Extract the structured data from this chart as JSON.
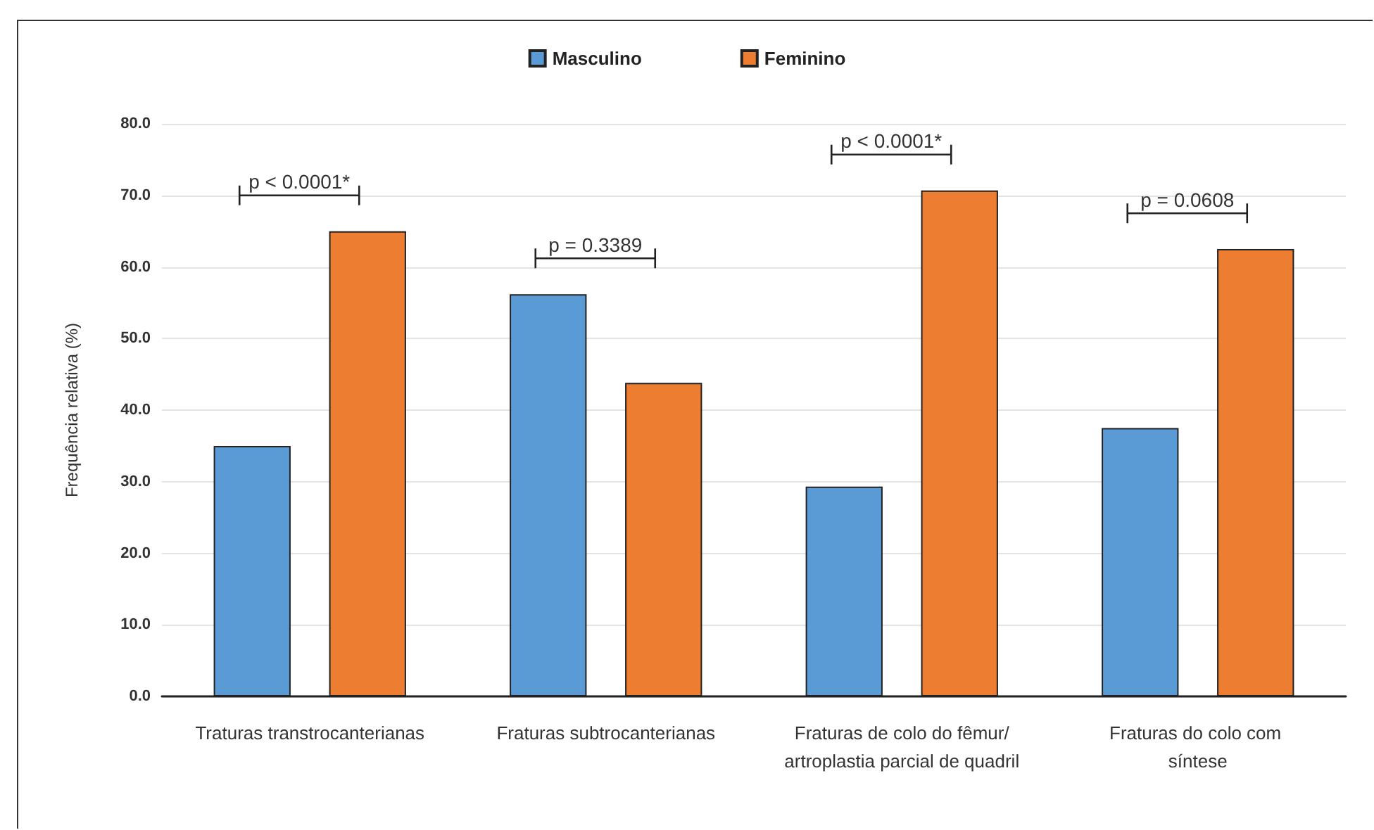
{
  "chart_data": {
    "type": "bar",
    "categories": [
      "Traturas transtrocanterianas",
      "Fraturas subtrocanterianas",
      "Fraturas de colo do fêmur/artroplastia parcial de quadril",
      "Fraturas do colo com síntese"
    ],
    "series": [
      {
        "name": "Masculino",
        "color": "#5b9bd5",
        "values": [
          35.0,
          56.2,
          29.3,
          37.5
        ]
      },
      {
        "name": "Feminino",
        "color": "#ed7d31",
        "values": [
          65.0,
          43.8,
          70.7,
          62.5
        ]
      }
    ],
    "ylabel": "Frequência relativa (%)",
    "ylim": [
      0,
      80
    ],
    "yticks": [
      {
        "value": 0,
        "label": "0.0"
      },
      {
        "value": 10,
        "label": "10.0"
      },
      {
        "value": 20,
        "label": "20.0"
      },
      {
        "value": 30,
        "label": "30.0"
      },
      {
        "value": 40,
        "label": "40.0"
      },
      {
        "value": 50,
        "label": "50.0"
      },
      {
        "value": 60,
        "label": "60.0"
      },
      {
        "value": 70,
        "label": "70.0"
      },
      {
        "value": 80,
        "label": "80.0"
      }
    ],
    "grid": "y",
    "legend": "top",
    "annotations": [
      "p < 0.0001*",
      "p = 0.3389",
      "p < 0.0001*",
      "p = 0.0608"
    ]
  }
}
